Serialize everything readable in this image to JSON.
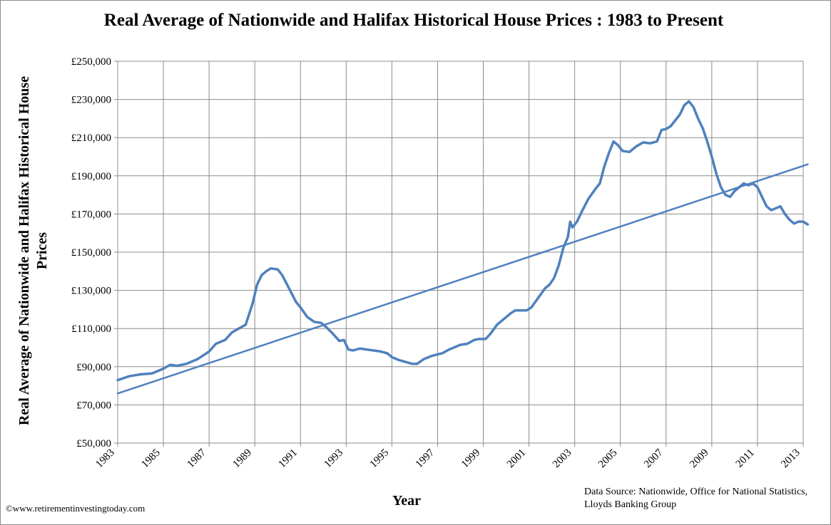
{
  "chart_data": {
    "type": "line",
    "title": "Real Average of Nationwide and Halifax Historical House Prices : 1983 to Present",
    "ylabel": "Real Average of Nationwide and Halifax Historical House Prices",
    "xlabel": "Year",
    "xlim": [
      1983,
      2013
    ],
    "ylim": [
      50000,
      250000
    ],
    "x_ticks": [
      "1983",
      "1985",
      "1987",
      "1989",
      "1991",
      "1993",
      "1995",
      "1997",
      "1999",
      "2001",
      "2003",
      "2005",
      "2007",
      "2009",
      "2011",
      "2013"
    ],
    "y_ticks": [
      "£50,000",
      "£70,000",
      "£90,000",
      "£110,000",
      "£130,000",
      "£150,000",
      "£170,000",
      "£190,000",
      "£210,000",
      "£230,000",
      "£250,000"
    ],
    "grid": true,
    "legend": "none",
    "series": [
      {
        "color": "#4f81bd",
        "points": [
          [
            1983.0,
            83000
          ],
          [
            1983.5,
            85000
          ],
          [
            1984.0,
            86000
          ],
          [
            1984.5,
            86500
          ],
          [
            1985.0,
            89000
          ],
          [
            1985.3,
            91000
          ],
          [
            1985.6,
            90500
          ],
          [
            1986.0,
            91500
          ],
          [
            1986.5,
            94000
          ],
          [
            1987.0,
            98000
          ],
          [
            1987.3,
            102000
          ],
          [
            1987.7,
            104000
          ],
          [
            1988.0,
            108000
          ],
          [
            1988.3,
            110000
          ],
          [
            1988.6,
            112000
          ],
          [
            1988.9,
            123000
          ],
          [
            1989.0,
            128000
          ],
          [
            1989.1,
            133000
          ],
          [
            1989.3,
            138000
          ],
          [
            1989.5,
            140000
          ],
          [
            1989.7,
            141500
          ],
          [
            1990.0,
            141000
          ],
          [
            1990.2,
            138000
          ],
          [
            1990.5,
            131000
          ],
          [
            1990.8,
            124000
          ],
          [
            1991.0,
            121000
          ],
          [
            1991.3,
            116000
          ],
          [
            1991.6,
            113500
          ],
          [
            1991.9,
            113000
          ],
          [
            1992.1,
            111000
          ],
          [
            1992.4,
            107500
          ],
          [
            1992.7,
            103500
          ],
          [
            1992.9,
            104000
          ],
          [
            1993.1,
            99000
          ],
          [
            1993.3,
            98500
          ],
          [
            1993.6,
            99500
          ],
          [
            1993.9,
            99000
          ],
          [
            1994.2,
            98500
          ],
          [
            1994.5,
            98000
          ],
          [
            1994.8,
            97000
          ],
          [
            1995.0,
            95000
          ],
          [
            1995.3,
            93500
          ],
          [
            1995.6,
            92500
          ],
          [
            1995.9,
            91500
          ],
          [
            1996.1,
            91500
          ],
          [
            1996.4,
            94000
          ],
          [
            1996.7,
            95500
          ],
          [
            1997.0,
            96500
          ],
          [
            1997.2,
            97000
          ],
          [
            1997.5,
            99000
          ],
          [
            1997.8,
            100500
          ],
          [
            1998.0,
            101500
          ],
          [
            1998.3,
            102000
          ],
          [
            1998.6,
            104000
          ],
          [
            1998.8,
            104500
          ],
          [
            1999.1,
            104500
          ],
          [
            1999.3,
            107000
          ],
          [
            1999.6,
            112000
          ],
          [
            1999.9,
            115000
          ],
          [
            2000.2,
            118000
          ],
          [
            2000.4,
            119500
          ],
          [
            2000.7,
            119500
          ],
          [
            2000.9,
            119500
          ],
          [
            2001.1,
            121000
          ],
          [
            2001.4,
            126000
          ],
          [
            2001.7,
            131000
          ],
          [
            2001.9,
            133000
          ],
          [
            2002.1,
            136500
          ],
          [
            2002.3,
            143000
          ],
          [
            2002.5,
            152000
          ],
          [
            2002.7,
            158000
          ],
          [
            2002.8,
            166000
          ],
          [
            2002.9,
            163000
          ],
          [
            2003.1,
            166000
          ],
          [
            2003.3,
            171000
          ],
          [
            2003.6,
            178000
          ],
          [
            2003.9,
            183000
          ],
          [
            2004.1,
            186000
          ],
          [
            2004.3,
            195000
          ],
          [
            2004.5,
            202000
          ],
          [
            2004.7,
            208000
          ],
          [
            2004.9,
            206000
          ],
          [
            2005.1,
            203000
          ],
          [
            2005.4,
            202500
          ],
          [
            2005.7,
            205500
          ],
          [
            2006.0,
            207500
          ],
          [
            2006.3,
            207000
          ],
          [
            2006.6,
            208000
          ],
          [
            2006.8,
            214000
          ],
          [
            2007.0,
            214500
          ],
          [
            2007.2,
            216000
          ],
          [
            2007.4,
            219000
          ],
          [
            2007.6,
            222000
          ],
          [
            2007.8,
            227000
          ],
          [
            2008.0,
            229000
          ],
          [
            2008.2,
            226000
          ],
          [
            2008.4,
            220000
          ],
          [
            2008.6,
            215000
          ],
          [
            2008.8,
            208000
          ],
          [
            2009.0,
            200000
          ],
          [
            2009.2,
            191000
          ],
          [
            2009.4,
            184000
          ],
          [
            2009.6,
            180000
          ],
          [
            2009.8,
            179000
          ],
          [
            2010.0,
            182000
          ],
          [
            2010.2,
            184000
          ],
          [
            2010.4,
            186000
          ],
          [
            2010.6,
            185000
          ],
          [
            2010.8,
            186000
          ],
          [
            2011.0,
            184000
          ],
          [
            2011.2,
            179000
          ],
          [
            2011.4,
            174000
          ],
          [
            2011.6,
            172000
          ],
          [
            2011.8,
            173000
          ],
          [
            2012.0,
            174000
          ],
          [
            2012.2,
            170000
          ],
          [
            2012.4,
            167000
          ],
          [
            2012.6,
            165000
          ],
          [
            2012.8,
            166000
          ],
          [
            2013.0,
            166000
          ],
          [
            2013.2,
            164500
          ]
        ]
      },
      {
        "color": "#4f81bd",
        "trendline": true,
        "points": [
          [
            1983.0,
            76000
          ],
          [
            2013.2,
            196000
          ]
        ]
      }
    ]
  },
  "footer": {
    "source": "Data Source: Nationwide, Office for National Statistics, Lloyds Banking Group",
    "copyright": "©www.retirementinvestingtoday.com"
  }
}
